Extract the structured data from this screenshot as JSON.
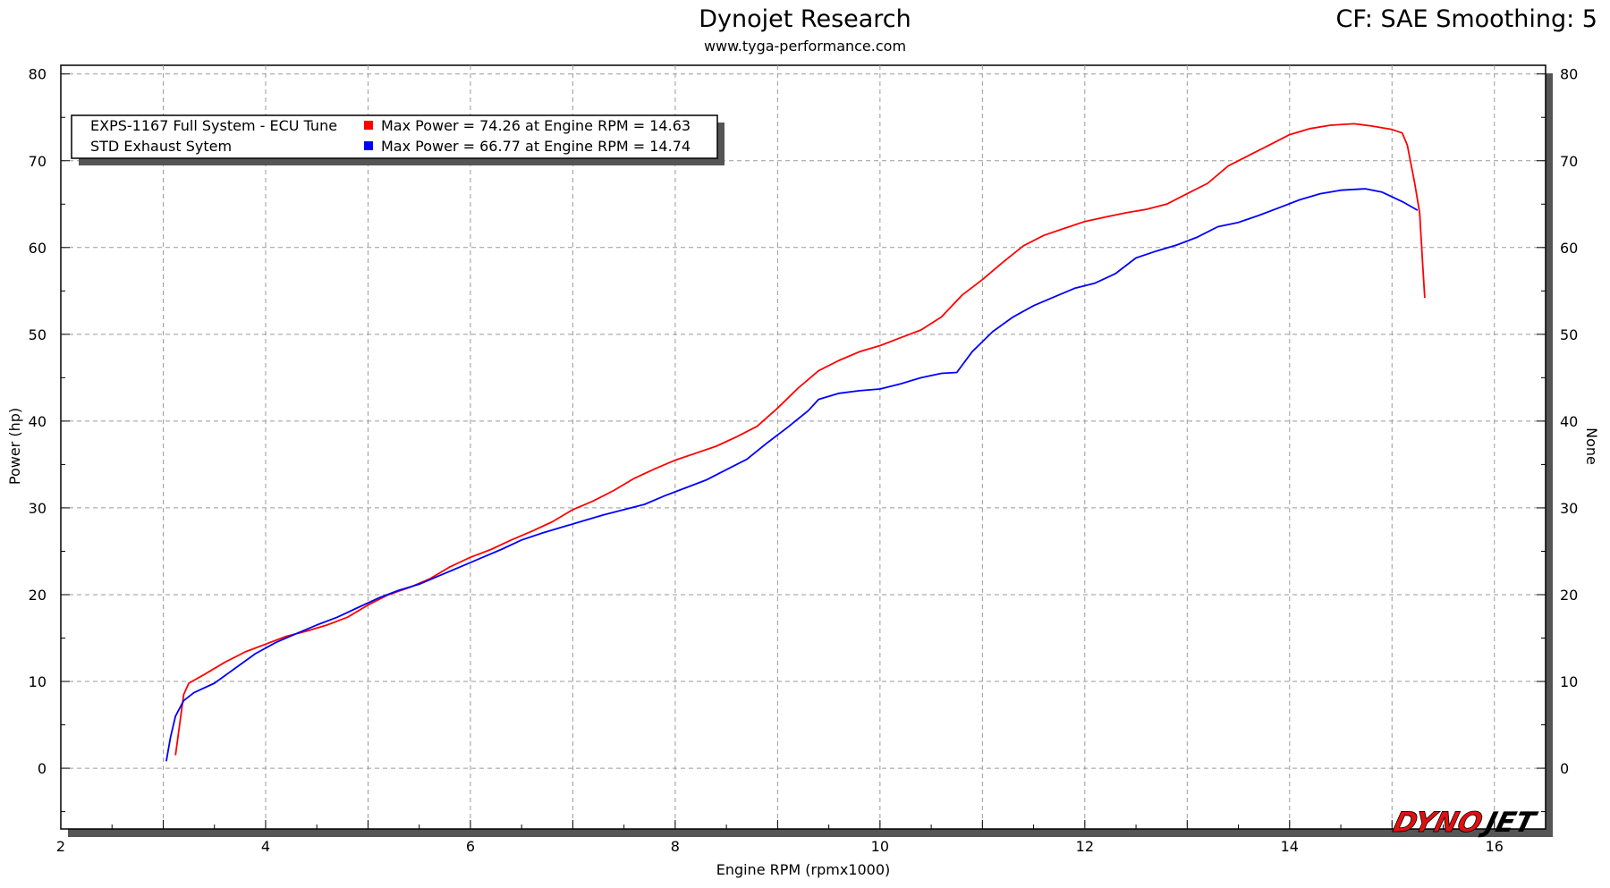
{
  "header": {
    "title": "Dynojet Research",
    "subtitle": "www.tyga-performance.com",
    "cf_label": "CF: SAE Smoothing: 5"
  },
  "brand": {
    "logo_text": "DYNOJET",
    "logo_color_primary": "#e01010",
    "logo_color_secondary": "#000000"
  },
  "chart_data": {
    "type": "line",
    "xlabel": "Engine RPM (rpmx1000)",
    "ylabel": "Power (hp)",
    "ylabel_right": "None",
    "xlim": [
      2,
      16.5
    ],
    "ylim": [
      -7,
      81
    ],
    "x_ticks": [
      2,
      4,
      6,
      8,
      10,
      12,
      14,
      16
    ],
    "y_ticks": [
      0,
      10,
      20,
      30,
      40,
      50,
      60,
      70,
      80
    ],
    "y_ticks_right": [
      0,
      10,
      20,
      30,
      40,
      50,
      60,
      70,
      80
    ],
    "grid": true,
    "legend_position": "top-left",
    "legend": [
      {
        "name": "EXPS-1167 Full System - ECU Tune",
        "stat": "Max Power = 74.26 at Engine RPM = 14.63",
        "color": "#ff0000"
      },
      {
        "name": "STD Exhaust Sytem",
        "stat": "Max Power = 66.77 at Engine RPM = 14.74",
        "color": "#0000ff"
      }
    ],
    "series": [
      {
        "name": "EXPS-1167 Full System - ECU Tune",
        "color": "#ff0000",
        "points": [
          [
            3.12,
            1.5
          ],
          [
            3.16,
            5.0
          ],
          [
            3.2,
            8.5
          ],
          [
            3.25,
            9.8
          ],
          [
            3.4,
            10.8
          ],
          [
            3.6,
            12.2
          ],
          [
            3.8,
            13.4
          ],
          [
            4.0,
            14.3
          ],
          [
            4.2,
            15.2
          ],
          [
            4.4,
            15.8
          ],
          [
            4.6,
            16.5
          ],
          [
            4.8,
            17.4
          ],
          [
            5.0,
            18.8
          ],
          [
            5.2,
            20.0
          ],
          [
            5.4,
            20.8
          ],
          [
            5.6,
            21.8
          ],
          [
            5.8,
            23.2
          ],
          [
            6.0,
            24.3
          ],
          [
            6.2,
            25.2
          ],
          [
            6.4,
            26.3
          ],
          [
            6.6,
            27.3
          ],
          [
            6.8,
            28.4
          ],
          [
            7.0,
            29.8
          ],
          [
            7.2,
            30.8
          ],
          [
            7.4,
            32.0
          ],
          [
            7.6,
            33.4
          ],
          [
            7.8,
            34.5
          ],
          [
            8.0,
            35.5
          ],
          [
            8.2,
            36.3
          ],
          [
            8.4,
            37.1
          ],
          [
            8.6,
            38.2
          ],
          [
            8.8,
            39.4
          ],
          [
            9.0,
            41.5
          ],
          [
            9.2,
            43.8
          ],
          [
            9.4,
            45.8
          ],
          [
            9.6,
            47.0
          ],
          [
            9.8,
            48.0
          ],
          [
            10.0,
            48.7
          ],
          [
            10.2,
            49.6
          ],
          [
            10.4,
            50.5
          ],
          [
            10.6,
            52.0
          ],
          [
            10.8,
            54.5
          ],
          [
            11.0,
            56.3
          ],
          [
            11.2,
            58.3
          ],
          [
            11.4,
            60.2
          ],
          [
            11.6,
            61.4
          ],
          [
            11.8,
            62.2
          ],
          [
            12.0,
            63.0
          ],
          [
            12.2,
            63.5
          ],
          [
            12.4,
            64.0
          ],
          [
            12.6,
            64.4
          ],
          [
            12.8,
            65.0
          ],
          [
            13.0,
            66.2
          ],
          [
            13.2,
            67.4
          ],
          [
            13.4,
            69.4
          ],
          [
            13.6,
            70.6
          ],
          [
            13.8,
            71.8
          ],
          [
            14.0,
            73.0
          ],
          [
            14.2,
            73.7
          ],
          [
            14.4,
            74.1
          ],
          [
            14.63,
            74.26
          ],
          [
            14.8,
            74.0
          ],
          [
            15.0,
            73.6
          ],
          [
            15.1,
            73.2
          ],
          [
            15.15,
            71.8
          ],
          [
            15.22,
            67.5
          ],
          [
            15.27,
            64.0
          ],
          [
            15.3,
            58.0
          ],
          [
            15.32,
            54.2
          ]
        ]
      },
      {
        "name": "STD Exhaust Sytem",
        "color": "#0000ff",
        "points": [
          [
            3.03,
            0.8
          ],
          [
            3.07,
            3.5
          ],
          [
            3.12,
            6.0
          ],
          [
            3.2,
            7.8
          ],
          [
            3.3,
            8.7
          ],
          [
            3.5,
            9.8
          ],
          [
            3.7,
            11.5
          ],
          [
            3.9,
            13.2
          ],
          [
            4.1,
            14.5
          ],
          [
            4.3,
            15.5
          ],
          [
            4.5,
            16.5
          ],
          [
            4.7,
            17.4
          ],
          [
            4.9,
            18.5
          ],
          [
            5.1,
            19.6
          ],
          [
            5.3,
            20.5
          ],
          [
            5.5,
            21.2
          ],
          [
            5.7,
            22.2
          ],
          [
            5.9,
            23.2
          ],
          [
            6.1,
            24.2
          ],
          [
            6.3,
            25.2
          ],
          [
            6.5,
            26.3
          ],
          [
            6.7,
            27.1
          ],
          [
            6.9,
            27.8
          ],
          [
            7.1,
            28.5
          ],
          [
            7.3,
            29.2
          ],
          [
            7.5,
            29.8
          ],
          [
            7.7,
            30.4
          ],
          [
            7.9,
            31.4
          ],
          [
            8.1,
            32.3
          ],
          [
            8.3,
            33.2
          ],
          [
            8.5,
            34.4
          ],
          [
            8.7,
            35.6
          ],
          [
            8.9,
            37.5
          ],
          [
            9.1,
            39.3
          ],
          [
            9.3,
            41.2
          ],
          [
            9.4,
            42.5
          ],
          [
            9.6,
            43.2
          ],
          [
            9.8,
            43.5
          ],
          [
            10.0,
            43.7
          ],
          [
            10.2,
            44.3
          ],
          [
            10.4,
            45.0
          ],
          [
            10.6,
            45.5
          ],
          [
            10.75,
            45.6
          ],
          [
            10.9,
            48.0
          ],
          [
            11.1,
            50.3
          ],
          [
            11.3,
            52.0
          ],
          [
            11.5,
            53.3
          ],
          [
            11.7,
            54.3
          ],
          [
            11.9,
            55.3
          ],
          [
            12.1,
            55.9
          ],
          [
            12.3,
            57.0
          ],
          [
            12.5,
            58.8
          ],
          [
            12.7,
            59.6
          ],
          [
            12.9,
            60.3
          ],
          [
            13.1,
            61.2
          ],
          [
            13.3,
            62.4
          ],
          [
            13.5,
            62.9
          ],
          [
            13.7,
            63.7
          ],
          [
            13.9,
            64.6
          ],
          [
            14.1,
            65.5
          ],
          [
            14.3,
            66.2
          ],
          [
            14.5,
            66.6
          ],
          [
            14.74,
            66.77
          ],
          [
            14.9,
            66.4
          ],
          [
            15.1,
            65.3
          ],
          [
            15.25,
            64.3
          ]
        ]
      }
    ]
  }
}
